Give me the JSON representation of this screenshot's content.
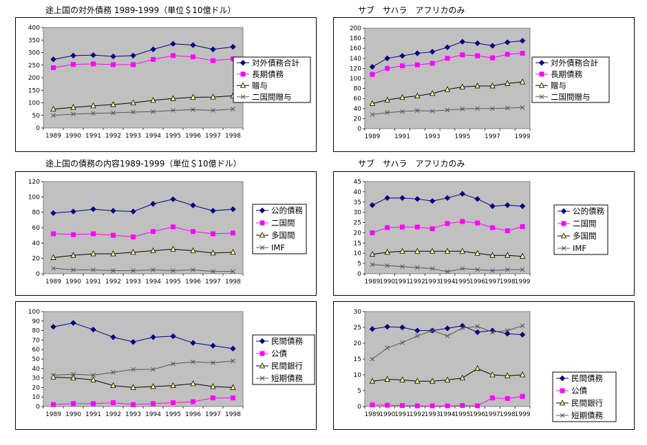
{
  "titles": {
    "t1": "途上国の対外債務 1989-1999（単位＄10億ドル）",
    "t2": "サブ　サハラ　アフリカのみ",
    "t3": "途上国の債務の内容1989-1999（単位＄10億ドル）",
    "t4": "サブ　サハラ　アフリカのみ"
  },
  "chart_data": [
    {
      "id": "c1",
      "type": "line",
      "title": "途上国の対外債務 1989-1999（単位＄10億ドル）",
      "categories": [
        "1989",
        "1990",
        "1991",
        "1992",
        "1993",
        "1994",
        "1995",
        "1996",
        "1997",
        "1998"
      ],
      "ylim": [
        0,
        400
      ],
      "yticks": [
        0,
        50,
        100,
        150,
        200,
        250,
        300,
        350,
        400
      ],
      "xlabels": [
        "1989",
        "1990",
        "1991",
        "1992",
        "1993",
        "1994",
        "1995",
        "1996",
        "1997",
        "1998"
      ],
      "grid": false,
      "legend": "right",
      "series": [
        {
          "name": "対外債務合計",
          "values": [
            273,
            288,
            290,
            285,
            288,
            313,
            335,
            330,
            313,
            323
          ],
          "color": "#000080",
          "marker": "diamond"
        },
        {
          "name": "長期債務",
          "values": [
            240,
            253,
            255,
            252,
            252,
            273,
            288,
            283,
            268,
            275
          ],
          "color": "#ff00ff",
          "marker": "square"
        },
        {
          "name": "贈与",
          "values": [
            75,
            82,
            88,
            93,
            100,
            110,
            117,
            122,
            123,
            128
          ],
          "color": "#000000",
          "marker": "triangle"
        },
        {
          "name": "二国間贈与",
          "values": [
            50,
            55,
            58,
            60,
            63,
            65,
            70,
            73,
            70,
            75
          ],
          "color": "#555555",
          "marker": "x"
        }
      ]
    },
    {
      "id": "c2",
      "type": "line",
      "title": "サブ　サハラ　アフリカのみ",
      "categories": [
        "1989",
        "1990",
        "1991",
        "1992",
        "1993",
        "1994",
        "1995",
        "1996",
        "1997",
        "1998",
        "1999"
      ],
      "ylim": [
        0,
        200
      ],
      "yticks": [
        0,
        20,
        40,
        60,
        80,
        100,
        120,
        140,
        160,
        180,
        200
      ],
      "xlabels": [
        "1989",
        "",
        "1991",
        "",
        "1993",
        "",
        "1995",
        "",
        "1997",
        "",
        "1999"
      ],
      "grid": false,
      "legend": "right",
      "series": [
        {
          "name": "対外債務合計",
          "values": [
            123,
            140,
            145,
            150,
            153,
            162,
            173,
            170,
            165,
            172,
            175
          ],
          "color": "#000080",
          "marker": "diamond"
        },
        {
          "name": "長期債務",
          "values": [
            108,
            120,
            125,
            127,
            130,
            140,
            147,
            145,
            141,
            148,
            150
          ],
          "color": "#ff00ff",
          "marker": "square"
        },
        {
          "name": "贈与",
          "values": [
            50,
            57,
            62,
            65,
            70,
            78,
            83,
            85,
            85,
            90,
            93
          ],
          "color": "#000000",
          "marker": "triangle"
        },
        {
          "name": "二国間贈与",
          "values": [
            28,
            32,
            34,
            36,
            35,
            37,
            39,
            40,
            40,
            41,
            42
          ],
          "color": "#555555",
          "marker": "x"
        }
      ]
    },
    {
      "id": "c3",
      "type": "line",
      "title": "途上国の債務の内容1989-1999（単位＄10億ドル）",
      "categories": [
        "1989",
        "1990",
        "1991",
        "1992",
        "1993",
        "1994",
        "1995",
        "1996",
        "1997",
        "1998"
      ],
      "ylim": [
        0,
        120
      ],
      "yticks": [
        0,
        20,
        40,
        60,
        80,
        100,
        120
      ],
      "xlabels": [
        "1989",
        "1990",
        "1991",
        "1992",
        "1993",
        "1994",
        "1995",
        "1996",
        "1997",
        "1998"
      ],
      "grid": false,
      "legend": "right",
      "series": [
        {
          "name": "公的債務",
          "values": [
            79,
            81,
            84,
            82,
            81,
            91,
            97,
            89,
            82,
            84
          ],
          "color": "#000080",
          "marker": "diamond"
        },
        {
          "name": "二国間",
          "values": [
            52,
            51,
            52,
            50,
            48,
            55,
            61,
            55,
            52,
            53
          ],
          "color": "#ff00ff",
          "marker": "square"
        },
        {
          "name": "多国間",
          "values": [
            21,
            24,
            26,
            26,
            28,
            30,
            32,
            30,
            27,
            28
          ],
          "color": "#000000",
          "marker": "triangle"
        },
        {
          "name": "IMF",
          "values": [
            7,
            5,
            5,
            4,
            4,
            5,
            4,
            5,
            3,
            3
          ],
          "color": "#555555",
          "marker": "x"
        }
      ]
    },
    {
      "id": "c4",
      "type": "line",
      "title": "サブ　サハラ　アフリカのみ",
      "categories": [
        "1989",
        "1990",
        "1991",
        "1992",
        "1993",
        "1994",
        "1995",
        "1996",
        "1997",
        "1998",
        "1999"
      ],
      "ylim": [
        0,
        45
      ],
      "yticks": [
        0,
        5,
        10,
        15,
        20,
        25,
        30,
        35,
        40,
        45
      ],
      "xlabels": [
        "1989",
        "1990",
        "1991",
        "1992",
        "1993",
        "1994",
        "1995",
        "1996",
        "1997",
        "1998",
        "1999"
      ],
      "grid": false,
      "legend": "right",
      "series": [
        {
          "name": "公的債務",
          "values": [
            33.5,
            37,
            37,
            36.5,
            35.5,
            37,
            39,
            36.5,
            33,
            33.5,
            33
          ],
          "color": "#000080",
          "marker": "diamond"
        },
        {
          "name": "二国間",
          "values": [
            20,
            22.5,
            22.8,
            22.8,
            22,
            24.5,
            25.5,
            24.8,
            22.5,
            21,
            23
          ],
          "color": "#ff00ff",
          "marker": "square"
        },
        {
          "name": "多国間",
          "values": [
            9.5,
            10.5,
            11,
            11,
            11,
            11,
            11,
            10,
            9,
            9,
            8.5
          ],
          "color": "#000000",
          "marker": "triangle"
        },
        {
          "name": "IMF",
          "values": [
            4.5,
            4,
            3.5,
            3,
            2.5,
            1,
            2.5,
            2,
            1.5,
            2,
            2
          ],
          "color": "#555555",
          "marker": "x"
        }
      ]
    },
    {
      "id": "c5",
      "type": "line",
      "title": "",
      "categories": [
        "1989",
        "1990",
        "1991",
        "1992",
        "1993",
        "1994",
        "1995",
        "1996",
        "1997",
        "1998"
      ],
      "ylim": [
        0,
        100
      ],
      "yticks": [
        0,
        10,
        20,
        30,
        40,
        50,
        60,
        70,
        80,
        90,
        100
      ],
      "xlabels": [
        "1989",
        "1990",
        "1991",
        "1992",
        "1993",
        "1994",
        "1995",
        "1996",
        "1997",
        "1998"
      ],
      "grid": false,
      "legend": "right",
      "series": [
        {
          "name": "民間債務",
          "values": [
            84,
            88,
            81,
            73,
            68,
            73,
            74,
            67,
            64,
            61
          ],
          "color": "#000080",
          "marker": "diamond"
        },
        {
          "name": "公債",
          "values": [
            2,
            3,
            3,
            4,
            2,
            3,
            4,
            5,
            9,
            9
          ],
          "color": "#ff00ff",
          "marker": "square"
        },
        {
          "name": "民間銀行",
          "values": [
            31,
            30,
            28,
            22,
            20,
            21,
            22,
            24,
            21,
            20
          ],
          "color": "#000000",
          "marker": "triangle"
        },
        {
          "name": "短期債務",
          "values": [
            33,
            34,
            33,
            36,
            39,
            39,
            45,
            47,
            46,
            48
          ],
          "color": "#555555",
          "marker": "x"
        }
      ]
    },
    {
      "id": "c6",
      "type": "line",
      "title": "",
      "categories": [
        "1989",
        "1990",
        "1991",
        "1992",
        "1993",
        "1994",
        "1995",
        "1996",
        "1997",
        "1998",
        "1999"
      ],
      "ylim": [
        0,
        30
      ],
      "yticks": [
        0,
        5,
        10,
        15,
        20,
        25,
        30
      ],
      "xlabels": [
        "1989",
        "1990",
        "1991",
        "1992",
        "1993",
        "1994",
        "1995",
        "1996",
        "1997",
        "1998",
        "1999"
      ],
      "grid": false,
      "legend": "right-bottom",
      "series": [
        {
          "name": "民間債務",
          "values": [
            24.5,
            25.2,
            25,
            24,
            24,
            24.7,
            25.5,
            23.5,
            24,
            23,
            22.7
          ],
          "color": "#000080",
          "marker": "diamond"
        },
        {
          "name": "公債",
          "values": [
            0.5,
            0.4,
            0.3,
            0.2,
            0.2,
            0.2,
            0.3,
            0.2,
            2.7,
            2.5,
            3.2
          ],
          "color": "#ff00ff",
          "marker": "square"
        },
        {
          "name": "民間銀行",
          "values": [
            8,
            8.6,
            8.4,
            8,
            8,
            8.4,
            9,
            12,
            10,
            9.7,
            10
          ],
          "color": "#000000",
          "marker": "triangle"
        },
        {
          "name": "短期債務",
          "values": [
            15,
            18.5,
            20.2,
            22.3,
            24,
            22.3,
            24.8,
            25.3,
            23.5,
            24,
            25.5
          ],
          "color": "#555555",
          "marker": "x"
        }
      ]
    }
  ]
}
